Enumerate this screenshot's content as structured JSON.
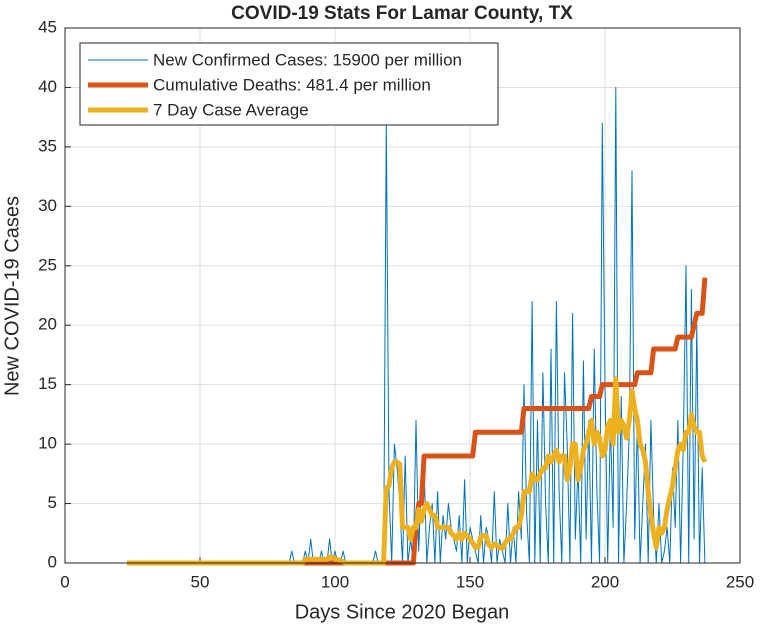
{
  "chart_data": {
    "type": "line",
    "title": "COVID-19 Stats For Lamar County, TX",
    "xlabel": "Days Since 2020 Began",
    "ylabel": "New COVID-19 Cases",
    "xlim": [
      0,
      250
    ],
    "ylim": [
      0,
      45
    ],
    "xticks": [
      0,
      50,
      100,
      150,
      200,
      250
    ],
    "yticks": [
      0,
      5,
      10,
      15,
      20,
      25,
      30,
      35,
      40,
      45
    ],
    "grid": true,
    "legend": "top-left",
    "x": [
      23,
      80,
      81,
      82,
      83,
      84,
      85,
      86,
      87,
      88,
      89,
      90,
      91,
      92,
      93,
      94,
      95,
      96,
      97,
      98,
      99,
      100,
      101,
      102,
      103,
      104,
      105,
      106,
      107,
      108,
      109,
      110,
      111,
      112,
      113,
      114,
      115,
      116,
      117,
      118,
      119,
      120,
      121,
      122,
      123,
      124,
      125,
      126,
      127,
      128,
      129,
      130,
      131,
      132,
      133,
      134,
      135,
      136,
      137,
      138,
      139,
      140,
      141,
      142,
      143,
      144,
      145,
      146,
      147,
      148,
      149,
      150,
      151,
      152,
      153,
      154,
      155,
      156,
      157,
      158,
      159,
      160,
      161,
      162,
      163,
      164,
      165,
      166,
      167,
      168,
      169,
      170,
      171,
      172,
      173,
      174,
      175,
      176,
      177,
      178,
      179,
      180,
      181,
      182,
      183,
      184,
      185,
      186,
      187,
      188,
      189,
      190,
      191,
      192,
      193,
      194,
      195,
      196,
      197,
      198,
      199,
      200,
      201,
      202,
      203,
      204,
      205,
      206,
      207,
      208,
      209,
      210,
      211,
      212,
      213,
      214,
      215,
      216,
      217,
      218,
      219,
      220,
      221,
      222,
      223,
      224,
      225,
      226,
      227,
      228,
      229,
      230,
      231,
      232,
      233,
      234,
      235,
      236,
      237
    ],
    "series": [
      {
        "name": "New Confirmed Cases: 15900 per million",
        "color": "#0072BD",
        "width": 1,
        "values": [
          0,
          0,
          0,
          0,
          0,
          1,
          0,
          0,
          0,
          0,
          1,
          0,
          2,
          0,
          0,
          0,
          1,
          0,
          0,
          2,
          0,
          1,
          0,
          0,
          1,
          0,
          0,
          0,
          0,
          0,
          0,
          0,
          0,
          0,
          0,
          0,
          1,
          0,
          0,
          0,
          37,
          6,
          0,
          10,
          8,
          5,
          0,
          9,
          0,
          2,
          0,
          12,
          1,
          7,
          8,
          0,
          3,
          5,
          0,
          6,
          0,
          4,
          2,
          5,
          3,
          2,
          1,
          4,
          0,
          7,
          0,
          3,
          2,
          1,
          0,
          4,
          0,
          3,
          2,
          0,
          6,
          0,
          2,
          1,
          0,
          5,
          0,
          3,
          0,
          6,
          2,
          15,
          4,
          0,
          22,
          0,
          12,
          0,
          16,
          5,
          0,
          18,
          0,
          22,
          6,
          0,
          16,
          10,
          0,
          21,
          2,
          8,
          0,
          17,
          2,
          12,
          0,
          18,
          6,
          0,
          37,
          15,
          0,
          12,
          3,
          40,
          0,
          14,
          0,
          5,
          11,
          33,
          2,
          12,
          0,
          5,
          10,
          0,
          12,
          4,
          0,
          5,
          0,
          1,
          3,
          0,
          8,
          3,
          12,
          0,
          10,
          25,
          0,
          23,
          2,
          20,
          0,
          8,
          0
        ]
      },
      {
        "name": "Cumulative Deaths: 481.4 per million",
        "color": "#D95319",
        "width": 5,
        "values": [
          0,
          0,
          0,
          0,
          0,
          0,
          0,
          0,
          0,
          0,
          0,
          0,
          0,
          0,
          0,
          0,
          0,
          0,
          0,
          0,
          0,
          0,
          0,
          0,
          0,
          0,
          0,
          0,
          0,
          0,
          0,
          0,
          0,
          0,
          0,
          0,
          0,
          0,
          0,
          0,
          0,
          0,
          0,
          0,
          0,
          0,
          0,
          0,
          0,
          0,
          0,
          3,
          5,
          5,
          9,
          9,
          9,
          9,
          9,
          9,
          9,
          9,
          9,
          9,
          9,
          9,
          9,
          9,
          9,
          9,
          9,
          9,
          9,
          11,
          11,
          11,
          11,
          11,
          11,
          11,
          11,
          11,
          11,
          11,
          11,
          11,
          11,
          11,
          11,
          11,
          11,
          13,
          13,
          13,
          13,
          13,
          13,
          13,
          13,
          13,
          13,
          13,
          13,
          13,
          13,
          13,
          13,
          13,
          13,
          13,
          13,
          13,
          13,
          13,
          13,
          13,
          14,
          14,
          14,
          14,
          15,
          15,
          15,
          15,
          15,
          15,
          15,
          15,
          15,
          15,
          15,
          15,
          15,
          16,
          16,
          16,
          16,
          16,
          16,
          18,
          18,
          18,
          18,
          18,
          18,
          18,
          18,
          18,
          19,
          19,
          19,
          19,
          19,
          19,
          20,
          21,
          21,
          21,
          24
        ]
      },
      {
        "name": "7 Day Case Average",
        "color": "#EDB120",
        "width": 5,
        "values": [
          0,
          0,
          0,
          0,
          0,
          0,
          0,
          0,
          0,
          0,
          0.3,
          0.3,
          0.3,
          0.3,
          0.3,
          0.3,
          0.3,
          0.3,
          0.3,
          0.5,
          0.5,
          0.3,
          0.3,
          0.2,
          0.1,
          0,
          0,
          0,
          0,
          0,
          0,
          0,
          0,
          0,
          0,
          0,
          0,
          0,
          0,
          0,
          6.3,
          6.5,
          8,
          8.5,
          8.5,
          8.3,
          3,
          3,
          3,
          2,
          3,
          3,
          4.5,
          3.5,
          4.5,
          5,
          4.5,
          4,
          4,
          3,
          3,
          3,
          3,
          3,
          2.5,
          2.3,
          2,
          2.5,
          2,
          2.5,
          2.3,
          2,
          1.7,
          1.3,
          1.3,
          2.2,
          2.3,
          2.3,
          1.5,
          1.3,
          1.6,
          1.5,
          1.3,
          1.2,
          1.7,
          2,
          2,
          2.5,
          3,
          3,
          4,
          6,
          6,
          6,
          7.5,
          7,
          7,
          7.5,
          8,
          8,
          9,
          8.5,
          9,
          9.5,
          8.5,
          9,
          9,
          7,
          8,
          10,
          10,
          7,
          8,
          9.5,
          10,
          11,
          12,
          10,
          11,
          10.5,
          9,
          9.5,
          11.5,
          12,
          10,
          15.5,
          11,
          12,
          11.5,
          10.5,
          12,
          14.5,
          13,
          12,
          10,
          9.5,
          8.5,
          6,
          4,
          2.5,
          1.3,
          3,
          2.5,
          3,
          4.5,
          5.5,
          6.5,
          8,
          9.5,
          10,
          9.5,
          11,
          11,
          12.5,
          11.5,
          11,
          11,
          9,
          8.5
        ]
      }
    ]
  }
}
